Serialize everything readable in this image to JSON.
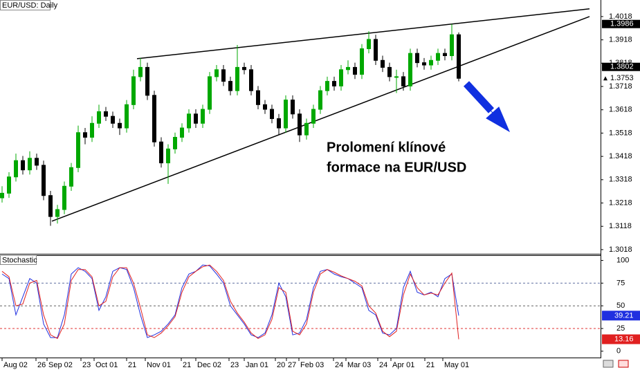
{
  "chart_data": [
    {
      "type": "candlestick",
      "title": "EUR/USD: Daily",
      "xlim": [
        0,
        86.5
      ],
      "xticks": [
        {
          "value": 0,
          "label": "Aug 02"
        },
        {
          "value": 4.9,
          "label": "26"
        },
        {
          "value": 6.5,
          "label": "Sep 02"
        },
        {
          "value": 11.4,
          "label": "23"
        },
        {
          "value": 13.3,
          "label": "Oct 01"
        },
        {
          "value": 18,
          "label": "21"
        },
        {
          "value": 20.7,
          "label": "Nov 01"
        },
        {
          "value": 25.9,
          "label": "21"
        },
        {
          "value": 28,
          "label": "Dec 02"
        },
        {
          "value": 32.8,
          "label": "23"
        },
        {
          "value": 35,
          "label": "Jan 01"
        },
        {
          "value": 39.5,
          "label": "20"
        },
        {
          "value": 41.1,
          "label": "27"
        },
        {
          "value": 42.9,
          "label": "Feb 03"
        },
        {
          "value": 47.9,
          "label": "24"
        },
        {
          "value": 49.7,
          "label": "Mar 03"
        },
        {
          "value": 54.3,
          "label": "24"
        },
        {
          "value": 56.2,
          "label": "Apr 01"
        },
        {
          "value": 61.1,
          "label": "21"
        },
        {
          "value": 63.7,
          "label": "May 01"
        }
      ],
      "ylim": [
        1.3,
        1.4089
      ],
      "yticks": [
        1.3018,
        1.3118,
        1.3218,
        1.3318,
        1.3418,
        1.3518,
        1.3618,
        1.3718,
        1.3818,
        1.3918,
        1.4018
      ],
      "up_color": "#00a800",
      "down_color": "#000000",
      "ohlc": [
        [
          1.324,
          1.329,
          1.322,
          1.326
        ],
        [
          1.326,
          1.335,
          1.324,
          1.333
        ],
        [
          1.333,
          1.343,
          1.331,
          1.34
        ],
        [
          1.34,
          1.342,
          1.334,
          1.336
        ],
        [
          1.336,
          1.344,
          1.334,
          1.341
        ],
        [
          1.341,
          1.343,
          1.336,
          1.338
        ],
        [
          1.338,
          1.34,
          1.323,
          1.325
        ],
        [
          1.325,
          1.327,
          1.312,
          1.316
        ],
        [
          1.316,
          1.321,
          1.313,
          1.319
        ],
        [
          1.319,
          1.331,
          1.317,
          1.329
        ],
        [
          1.329,
          1.339,
          1.327,
          1.337
        ],
        [
          1.337,
          1.355,
          1.335,
          1.352
        ],
        [
          1.352,
          1.354,
          1.347,
          1.35
        ],
        [
          1.35,
          1.359,
          1.348,
          1.356
        ],
        [
          1.356,
          1.364,
          1.354,
          1.361
        ],
        [
          1.361,
          1.363,
          1.357,
          1.359
        ],
        [
          1.359,
          1.361,
          1.354,
          1.356
        ],
        [
          1.356,
          1.358,
          1.351,
          1.354
        ],
        [
          1.354,
          1.366,
          1.352,
          1.364
        ],
        [
          1.364,
          1.379,
          1.362,
          1.376
        ],
        [
          1.376,
          1.384,
          1.374,
          1.38
        ],
        [
          1.38,
          1.382,
          1.366,
          1.368
        ],
        [
          1.368,
          1.37,
          1.346,
          1.348
        ],
        [
          1.348,
          1.35,
          1.337,
          1.339
        ],
        [
          1.339,
          1.347,
          1.33,
          1.345
        ],
        [
          1.345,
          1.352,
          1.343,
          1.35
        ],
        [
          1.35,
          1.356,
          1.348,
          1.354
        ],
        [
          1.354,
          1.362,
          1.352,
          1.36
        ],
        [
          1.36,
          1.362,
          1.354,
          1.356
        ],
        [
          1.356,
          1.364,
          1.354,
          1.362
        ],
        [
          1.362,
          1.378,
          1.36,
          1.376
        ],
        [
          1.376,
          1.381,
          1.374,
          1.379
        ],
        [
          1.379,
          1.381,
          1.372,
          1.374
        ],
        [
          1.374,
          1.376,
          1.368,
          1.37
        ],
        [
          1.37,
          1.3896,
          1.368,
          1.38
        ],
        [
          1.38,
          1.382,
          1.377,
          1.379
        ],
        [
          1.379,
          1.381,
          1.368,
          1.37
        ],
        [
          1.37,
          1.372,
          1.362,
          1.364
        ],
        [
          1.364,
          1.366,
          1.36,
          1.362
        ],
        [
          1.362,
          1.364,
          1.356,
          1.358
        ],
        [
          1.358,
          1.36,
          1.351,
          1.354
        ],
        [
          1.354,
          1.368,
          1.352,
          1.366
        ],
        [
          1.366,
          1.368,
          1.358,
          1.36
        ],
        [
          1.36,
          1.362,
          1.348,
          1.351
        ],
        [
          1.351,
          1.358,
          1.349,
          1.356
        ],
        [
          1.356,
          1.364,
          1.354,
          1.362
        ],
        [
          1.362,
          1.372,
          1.36,
          1.37
        ],
        [
          1.37,
          1.376,
          1.368,
          1.374
        ],
        [
          1.374,
          1.376,
          1.37,
          1.372
        ],
        [
          1.372,
          1.381,
          1.37,
          1.379
        ],
        [
          1.379,
          1.383,
          1.377,
          1.38
        ],
        [
          1.38,
          1.382,
          1.375,
          1.377
        ],
        [
          1.377,
          1.39,
          1.375,
          1.388
        ],
        [
          1.388,
          1.3955,
          1.386,
          1.392
        ],
        [
          1.392,
          1.394,
          1.381,
          1.383
        ],
        [
          1.383,
          1.385,
          1.378,
          1.38
        ],
        [
          1.38,
          1.382,
          1.374,
          1.376
        ],
        [
          1.376,
          1.379,
          1.369,
          1.376
        ],
        [
          1.376,
          1.378,
          1.37,
          1.372
        ],
        [
          1.372,
          1.388,
          1.37,
          1.386
        ],
        [
          1.386,
          1.388,
          1.38,
          1.382
        ],
        [
          1.382,
          1.384,
          1.379,
          1.381
        ],
        [
          1.381,
          1.385,
          1.379,
          1.383
        ],
        [
          1.383,
          1.388,
          1.381,
          1.386
        ],
        [
          1.386,
          1.388,
          1.383,
          1.385
        ],
        [
          1.385,
          1.3986,
          1.383,
          1.394
        ],
        [
          1.394,
          1.395,
          1.374,
          1.3753
        ]
      ],
      "price_markers": [
        1.3986,
        1.3802,
        1.3753
      ],
      "trendlines": [
        {
          "x": [
            19.5,
            84.9
          ],
          "y": [
            1.3837,
            1.4051
          ]
        },
        {
          "x": [
            7.2,
            84.9
          ],
          "y": [
            1.314,
            1.4018
          ]
        }
      ],
      "annotation": [
        "Prolomení klínové",
        "formace na EUR/USD"
      ]
    },
    {
      "type": "line",
      "title": "Stochastic",
      "ylim": [
        -7,
        105
      ],
      "yticks": [
        0,
        25,
        50,
        75,
        100
      ],
      "levels": [
        25,
        50,
        75
      ],
      "level_colors": [
        "#e03030",
        "#606060",
        "#6070a0"
      ],
      "series": [
        {
          "color": "#2030e0",
          "values": [
            85,
            80,
            40,
            60,
            80,
            75,
            30,
            15,
            15,
            40,
            85,
            92,
            88,
            80,
            45,
            60,
            88,
            92,
            90,
            70,
            40,
            15,
            18,
            22,
            30,
            40,
            70,
            85,
            88,
            95,
            94,
            85,
            75,
            50,
            40,
            30,
            18,
            15,
            20,
            40,
            75,
            60,
            18,
            20,
            35,
            70,
            88,
            90,
            85,
            82,
            80,
            75,
            70,
            45,
            40,
            20,
            18,
            25,
            70,
            88,
            65,
            62,
            65,
            60,
            80,
            85,
            39.21
          ]
        },
        {
          "color": "#e02020",
          "values": [
            88,
            82,
            50,
            52,
            75,
            78,
            40,
            18,
            14,
            30,
            78,
            90,
            90,
            82,
            50,
            55,
            82,
            92,
            92,
            75,
            48,
            18,
            15,
            20,
            28,
            38,
            65,
            82,
            88,
            93,
            95,
            88,
            78,
            55,
            42,
            32,
            20,
            14,
            18,
            35,
            70,
            65,
            22,
            18,
            30,
            65,
            85,
            90,
            87,
            83,
            80,
            77,
            72,
            50,
            42,
            22,
            16,
            22,
            62,
            85,
            70,
            62,
            64,
            62,
            75,
            86,
            13.16
          ]
        }
      ]
    }
  ]
}
